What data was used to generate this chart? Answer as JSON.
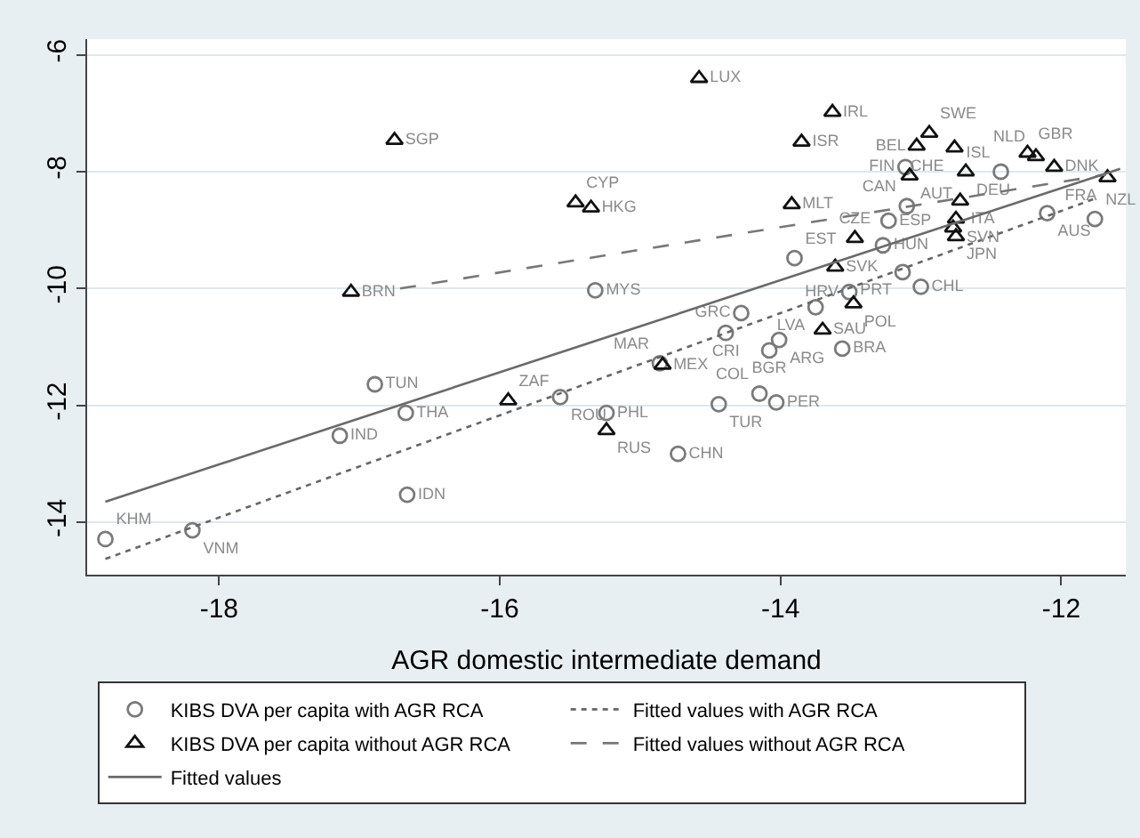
{
  "chart_data": {
    "type": "scatter",
    "xlabel": "AGR domestic intermediate demand",
    "xlim": [
      -18.94,
      -11.54
    ],
    "ylim": [
      -14.9,
      -5.73
    ],
    "xticks": [
      -18,
      -16,
      -14,
      -12
    ],
    "yticks": [
      -14,
      -12,
      -10,
      -8,
      -6
    ],
    "grid": "y",
    "legend": "bottom",
    "series": [
      {
        "name": "KIBS DVA per capita with AGR RCA",
        "marker": "circle",
        "color": "#7a7a7a",
        "x": [
          -13.11,
          -12.43,
          -13.1,
          -13.23,
          -12.1,
          -11.76,
          -13.27,
          -13.9,
          -13.13,
          -13.0,
          -15.32,
          -13.51,
          -13.75,
          -14.28,
          -14.39,
          -14.01,
          -14.08,
          -13.56,
          -14.86,
          -15.57,
          -15.24,
          -14.44,
          -14.15,
          -14.03,
          -14.73,
          -16.89,
          -16.67,
          -17.14,
          -16.66,
          -18.81,
          -18.19
        ],
        "values": [
          -7.92,
          -8.0,
          -8.59,
          -8.84,
          -8.71,
          -8.81,
          -9.26,
          -9.48,
          -9.72,
          -9.97,
          -10.03,
          -10.06,
          -10.32,
          -10.42,
          -10.76,
          -10.88,
          -11.06,
          -11.03,
          -11.28,
          -11.86,
          -12.13,
          -11.98,
          -11.8,
          -11.95,
          -12.83,
          -11.64,
          -12.13,
          -12.52,
          -13.53,
          -14.29,
          -14.14
        ],
        "value_labels": [
          "FIN",
          "ISL",
          "CAN",
          "ESP",
          "AUS",
          "NZL",
          "HUN",
          "EST",
          "PRT",
          "CHL",
          "MYS",
          "HRV",
          "LVA",
          "GRC",
          "CRI",
          "ARG",
          "BGR",
          "BRA",
          "MAR",
          "ROU",
          "PHL",
          "TUR",
          "COL",
          "PER",
          "CHN",
          "TUN",
          "THA",
          "IND",
          "IDN",
          "KHM",
          "VNM"
        ]
      },
      {
        "name": "Fitted values with AGR RCA",
        "type": "line",
        "line_style": "dotted",
        "color": "#666666",
        "x": [
          -18.81,
          -11.77
        ],
        "values": [
          -14.63,
          -8.47
        ]
      },
      {
        "name": "KIBS DVA per capita without AGR RCA",
        "marker": "triangle",
        "color": "#111111",
        "x": [
          -16.75,
          -17.06,
          -14.58,
          -13.63,
          -13.85,
          -12.94,
          -13.03,
          -12.76,
          -12.24,
          -12.18,
          -12.05,
          -11.67,
          -13.08,
          -12.68,
          -15.46,
          -15.35,
          -13.92,
          -12.72,
          -12.75,
          -12.77,
          -12.75,
          -13.47,
          -13.61,
          -13.48,
          -13.7,
          -14.84,
          -15.94,
          -15.24
        ],
        "values": [
          -7.46,
          -10.06,
          -6.4,
          -6.98,
          -7.49,
          -7.34,
          -7.56,
          -7.59,
          -7.68,
          -7.74,
          -7.92,
          -8.1,
          -8.07,
          -8.0,
          -8.53,
          -8.62,
          -8.56,
          -8.5,
          -8.81,
          -8.96,
          -9.11,
          -9.14,
          -9.63,
          -10.26,
          -10.71,
          -11.31,
          -11.92,
          -12.43
        ],
        "value_labels": [
          "SGP",
          "BRN",
          "LUX",
          "IRL",
          "ISR",
          "SWE",
          "BEL",
          "CHE",
          "GBR",
          "NLD",
          "DNK",
          "FRA",
          "AUT",
          "DEU",
          "CYP",
          "HKG",
          "MLT",
          "ITA",
          "SVN",
          null,
          "JPN",
          "CZE",
          "SVK",
          "POL",
          "SAU",
          "MEX",
          "ZAF",
          "RUS"
        ]
      },
      {
        "name": "Fitted values without AGR RCA",
        "type": "line",
        "line_style": "dashed",
        "color": "#777777",
        "x": [
          -16.71,
          -11.68
        ],
        "values": [
          -10.0,
          -8.05
        ]
      },
      {
        "name": "Fitted values",
        "type": "line",
        "line_style": "solid",
        "color": "#6a6a6a",
        "x": [
          -18.81,
          -11.58
        ],
        "values": [
          -13.65,
          -7.95
        ]
      }
    ]
  }
}
